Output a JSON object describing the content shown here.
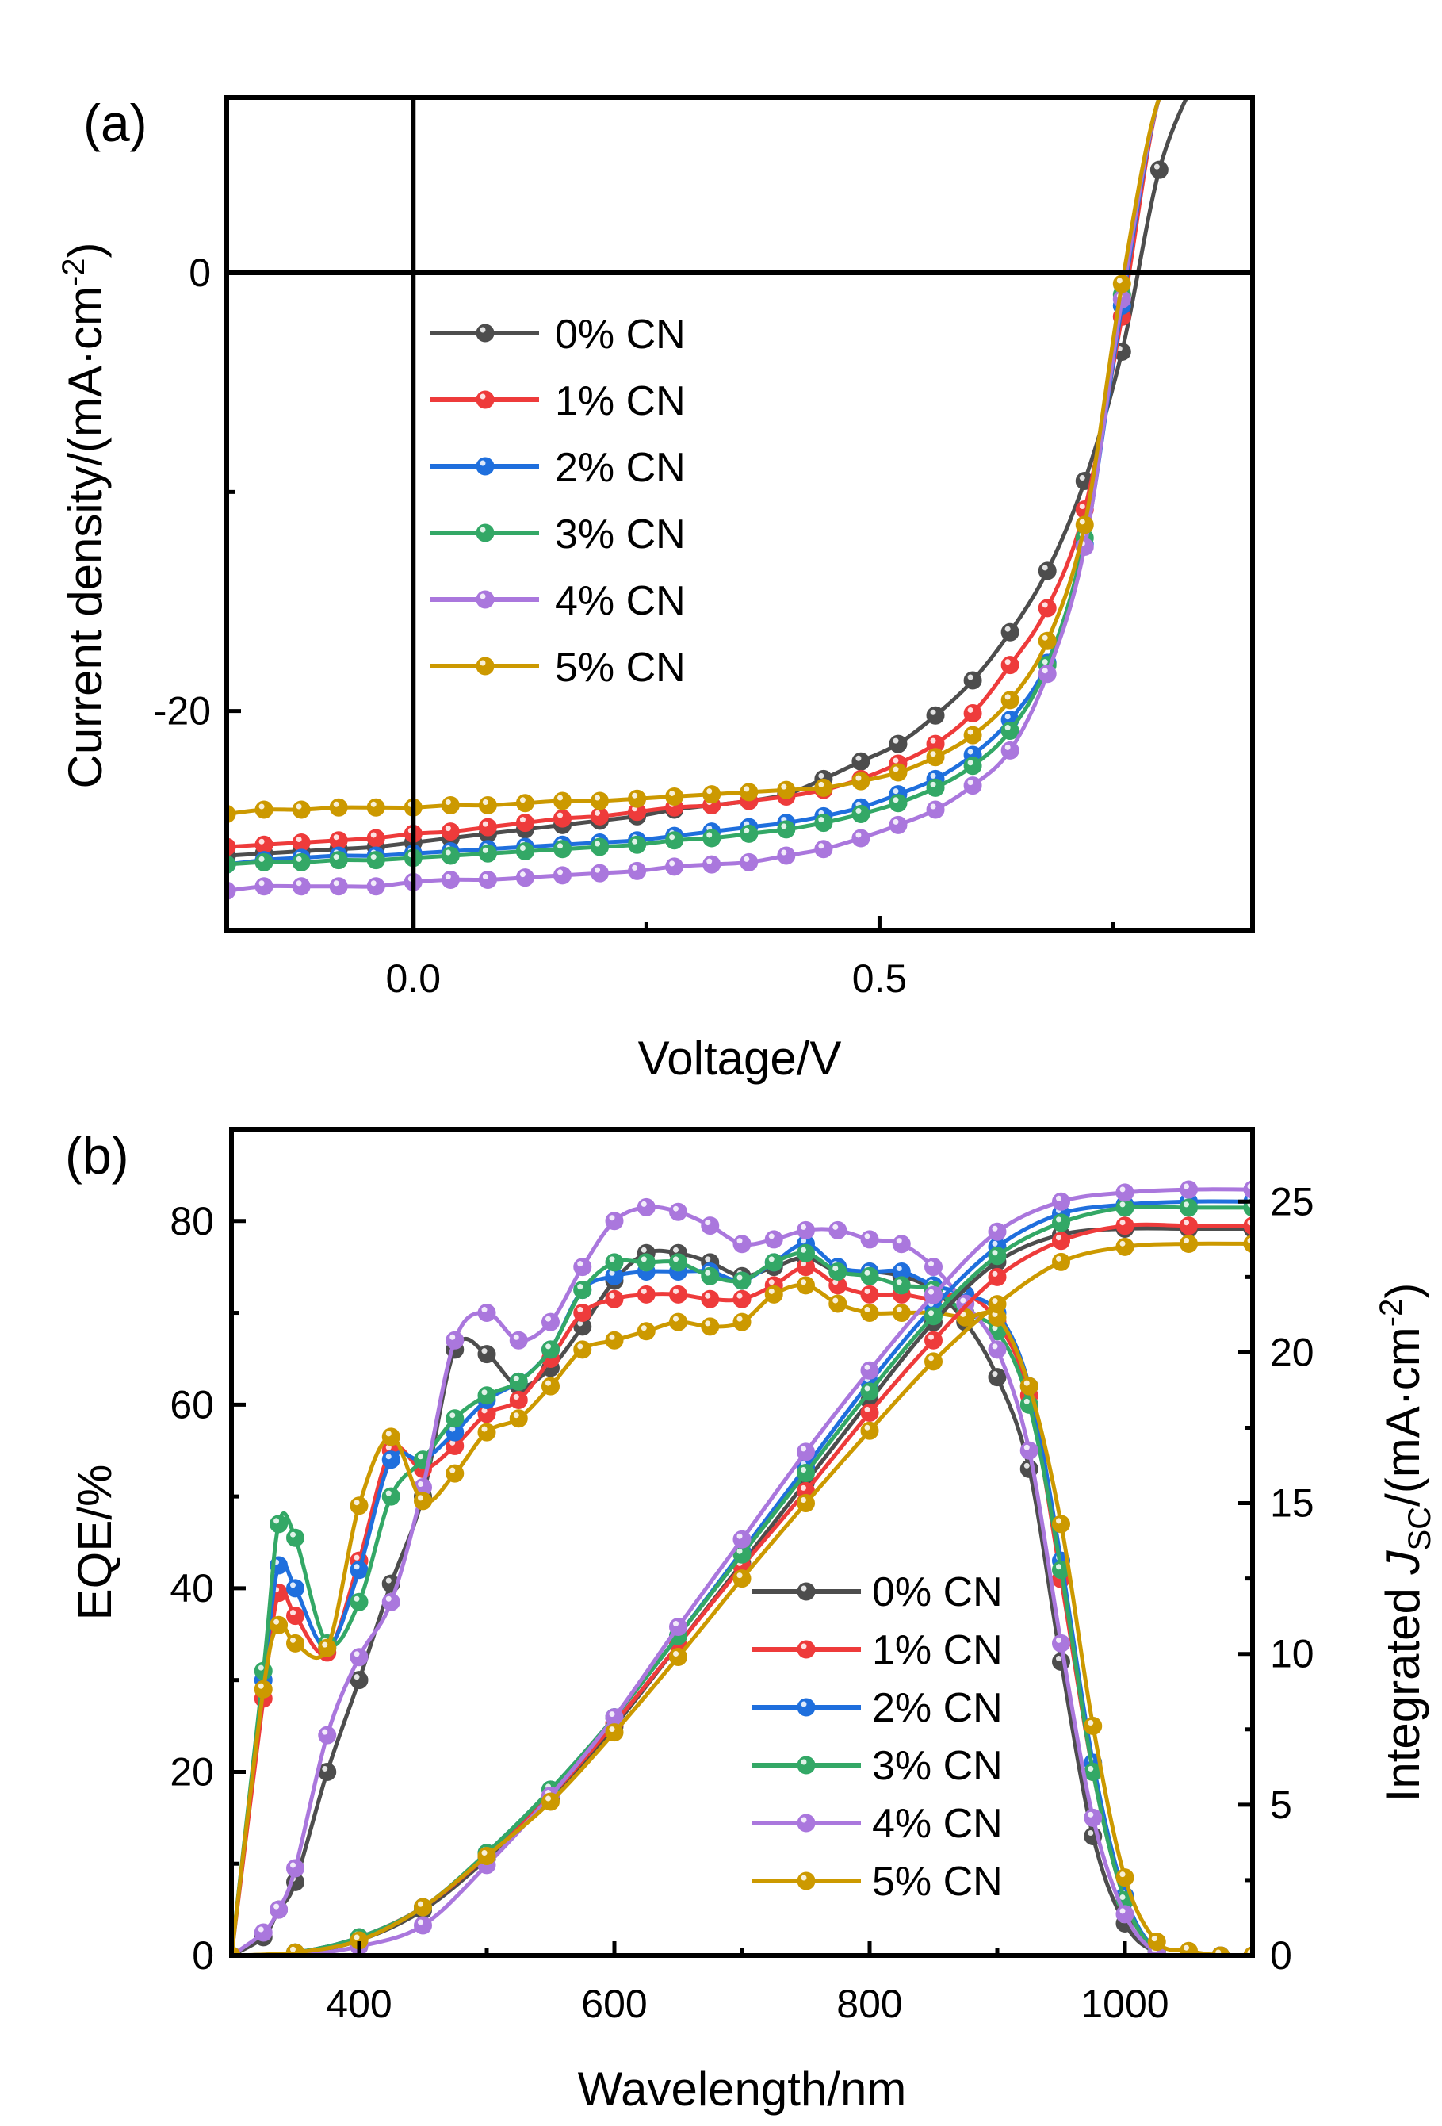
{
  "series_colors": {
    "0% CN": "#4d4d4d",
    "1% CN": "#ee3b3b",
    "2% CN": "#1f6fdd",
    "3% CN": "#33a866",
    "4% CN": "#aa77dd",
    "5% CN": "#cc9900"
  },
  "chart_data": [
    {
      "id": "a",
      "type": "line",
      "panel_label": "(a)",
      "xlabel": "Voltage/V",
      "ylabel": "Current density/(mA·cm⁻²)",
      "ylabel_parts": {
        "main": "Current density/(mA·cm",
        "sup": "-2",
        "end": ")"
      },
      "xlim": [
        -0.2,
        0.9
      ],
      "ylim": [
        -30,
        8
      ],
      "x_ticks": [
        0.0,
        0.5
      ],
      "x_tick_labels": [
        "0.0",
        "0.5"
      ],
      "x_minor_ticks": [
        0.25,
        0.75
      ],
      "y_ticks": [
        0,
        -20
      ],
      "y_tick_labels": [
        "0",
        "-20"
      ],
      "y_minor_ticks": [
        -10
      ],
      "reference_lines": {
        "x": 0,
        "y": 0
      },
      "grid": false,
      "legend_position": "upper-left",
      "legend": [
        "0% CN",
        "1% CN",
        "2% CN",
        "3% CN",
        "4% CN",
        "5% CN"
      ],
      "x": [
        -0.2,
        -0.16,
        -0.12,
        -0.08,
        -0.04,
        0.0,
        0.04,
        0.08,
        0.12,
        0.16,
        0.2,
        0.24,
        0.28,
        0.32,
        0.36,
        0.4,
        0.44,
        0.48,
        0.52,
        0.56,
        0.6,
        0.64,
        0.68,
        0.72,
        0.76,
        0.8,
        0.84
      ],
      "series": [
        {
          "name": "0% CN",
          "values": [
            -26.6,
            -26.5,
            -26.4,
            -26.3,
            -26.2,
            -26.0,
            -25.8,
            -25.6,
            -25.4,
            -25.2,
            -25.0,
            -24.8,
            -24.5,
            -24.3,
            -24.1,
            -23.8,
            -23.1,
            -22.3,
            -21.5,
            -20.2,
            -18.6,
            -16.4,
            -13.6,
            -9.5,
            -3.6,
            4.7,
            9.0
          ]
        },
        {
          "name": "1% CN",
          "values": [
            -26.2,
            -26.1,
            -26.0,
            -25.9,
            -25.8,
            -25.6,
            -25.5,
            -25.3,
            -25.1,
            -24.9,
            -24.8,
            -24.6,
            -24.4,
            -24.3,
            -24.1,
            -23.9,
            -23.6,
            -23.1,
            -22.4,
            -21.5,
            -20.1,
            -17.9,
            -15.3,
            -10.8,
            -2.0,
            8.0,
            9.0
          ]
        },
        {
          "name": "2% CN",
          "values": [
            -27.0,
            -26.8,
            -26.7,
            -26.6,
            -26.6,
            -26.5,
            -26.4,
            -26.3,
            -26.2,
            -26.1,
            -26.0,
            -25.9,
            -25.7,
            -25.5,
            -25.3,
            -25.1,
            -24.8,
            -24.4,
            -23.8,
            -23.1,
            -22.0,
            -20.4,
            -17.8,
            -12.4,
            -1.5,
            8.0,
            9.0
          ]
        },
        {
          "name": "3% CN",
          "values": [
            -27.0,
            -26.9,
            -26.9,
            -26.8,
            -26.8,
            -26.7,
            -26.6,
            -26.5,
            -26.4,
            -26.3,
            -26.2,
            -26.1,
            -25.9,
            -25.8,
            -25.6,
            -25.4,
            -25.1,
            -24.7,
            -24.2,
            -23.5,
            -22.5,
            -20.9,
            -17.9,
            -12.1,
            -1.0,
            8.0,
            9.0
          ]
        },
        {
          "name": "4% CN",
          "values": [
            -28.2,
            -28.0,
            -28.0,
            -28.0,
            -28.0,
            -27.8,
            -27.7,
            -27.7,
            -27.6,
            -27.5,
            -27.4,
            -27.3,
            -27.1,
            -27.0,
            -26.9,
            -26.6,
            -26.3,
            -25.8,
            -25.2,
            -24.5,
            -23.4,
            -21.8,
            -18.3,
            -12.5,
            -1.2,
            8.0,
            9.0
          ]
        },
        {
          "name": "5% CN",
          "values": [
            -24.7,
            -24.5,
            -24.5,
            -24.4,
            -24.4,
            -24.4,
            -24.3,
            -24.3,
            -24.2,
            -24.1,
            -24.1,
            -24.0,
            -23.9,
            -23.8,
            -23.7,
            -23.6,
            -23.5,
            -23.2,
            -22.8,
            -22.1,
            -21.1,
            -19.5,
            -16.8,
            -11.5,
            -0.5,
            8.0,
            9.0
          ]
        }
      ]
    },
    {
      "id": "b",
      "type": "line",
      "panel_label": "(b)",
      "xlabel": "Wavelength/nm",
      "ylabel": "EQE/%",
      "y2label": "Integrated J_SC/(mA·cm⁻²)",
      "y2label_parts": {
        "main": "Integrated ",
        "italic": "J",
        "sub": "SC",
        "mid": "/(mA·cm",
        "sup": "-2",
        "end": ")"
      },
      "xlim": [
        300,
        1100
      ],
      "ylim": [
        0,
        90
      ],
      "y2lim": [
        0,
        27.4
      ],
      "x_ticks": [
        400,
        600,
        800,
        1000
      ],
      "x_tick_labels": [
        "400",
        "600",
        "800",
        "1000"
      ],
      "x_minor_ticks": [
        500,
        700,
        900
      ],
      "y_ticks": [
        0,
        20,
        40,
        60,
        80
      ],
      "y_tick_labels": [
        "0",
        "20",
        "40",
        "60",
        "80"
      ],
      "y_minor_ticks": [
        10,
        30,
        50,
        70
      ],
      "y2_ticks": [
        0,
        5,
        10,
        15,
        20,
        25
      ],
      "y2_tick_labels": [
        "0",
        "5",
        "10",
        "15",
        "20",
        "25"
      ],
      "y2_minor_ticks": [
        2.5,
        7.5,
        12.5,
        17.5,
        22.5
      ],
      "grid": false,
      "legend_position": "lower-center",
      "legend": [
        "0% CN",
        "1% CN",
        "2% CN",
        "3% CN",
        "4% CN",
        "5% CN"
      ],
      "eqe_x": [
        300,
        325,
        337,
        350,
        375,
        400,
        425,
        450,
        475,
        500,
        525,
        550,
        575,
        600,
        625,
        650,
        675,
        700,
        725,
        750,
        775,
        800,
        825,
        850,
        875,
        900,
        925,
        950,
        975,
        1000,
        1025,
        1050,
        1075,
        1100
      ],
      "eqe_series": [
        {
          "name": "0% CN",
          "values": [
            0,
            2,
            5,
            8,
            20,
            30,
            40.5,
            50,
            66,
            65.5,
            62,
            64,
            68.5,
            73.5,
            76.5,
            76.5,
            75.5,
            74,
            75,
            76,
            74.5,
            74.5,
            74,
            72.5,
            69,
            63,
            53,
            32,
            13,
            3.5,
            0.3,
            0,
            0,
            0
          ]
        },
        {
          "name": "1% CN",
          "values": [
            0,
            28,
            39.5,
            37,
            33,
            43,
            55,
            53,
            55.5,
            59,
            60.5,
            65,
            70,
            71.5,
            72,
            72,
            71.5,
            71.5,
            73,
            75,
            73,
            72,
            72,
            71.5,
            72,
            69,
            61,
            41,
            20,
            6,
            0.5,
            0,
            0,
            0
          ]
        },
        {
          "name": "2% CN",
          "values": [
            0,
            30,
            42.5,
            40,
            33.5,
            42,
            54,
            54,
            57,
            60.5,
            62.5,
            66,
            72.5,
            74,
            74.5,
            74.5,
            74.5,
            73.5,
            75.5,
            77.5,
            75,
            74.5,
            74.5,
            73,
            72,
            70,
            62,
            43,
            21,
            6.5,
            0.5,
            0,
            0,
            0
          ]
        },
        {
          "name": "3% CN",
          "values": [
            0,
            31,
            47,
            45.5,
            34,
            38.5,
            50,
            54,
            58.5,
            61,
            62.5,
            66,
            72.5,
            75.5,
            75.5,
            75.5,
            74,
            73.5,
            75.5,
            76.5,
            74.5,
            74,
            73,
            72.5,
            70,
            68,
            60,
            42,
            20,
            6,
            0.5,
            0,
            0,
            0
          ]
        },
        {
          "name": "4% CN",
          "values": [
            0,
            2.5,
            5,
            9.5,
            24,
            32.5,
            38.5,
            51,
            67,
            70,
            67,
            69,
            75,
            80,
            81.5,
            81,
            79.5,
            77.5,
            78,
            79,
            79,
            78,
            77.5,
            75,
            71,
            66,
            55,
            34,
            15,
            4.5,
            0.3,
            0,
            0,
            0
          ]
        },
        {
          "name": "5% CN",
          "values": [
            0,
            29,
            36,
            34,
            33.5,
            49,
            56.5,
            49.5,
            52.5,
            57,
            58.5,
            62,
            66,
            67,
            68,
            69,
            68.5,
            69,
            72,
            73,
            71,
            70,
            70,
            70,
            69.5,
            69.5,
            62,
            47,
            25,
            8.5,
            1.5,
            0.5,
            0,
            0
          ]
        }
      ],
      "jsc_x": [
        300,
        350,
        400,
        450,
        500,
        550,
        600,
        650,
        700,
        750,
        800,
        850,
        900,
        950,
        1000,
        1050,
        1100
      ],
      "jsc_series": [
        {
          "name": "0% CN",
          "values": [
            0,
            0.05,
            0.5,
            1.5,
            3.2,
            5.2,
            7.6,
            10.3,
            13.0,
            15.7,
            18.4,
            21.0,
            23.0,
            23.9,
            24.1,
            24.1,
            24.1
          ]
        },
        {
          "name": "1% CN",
          "values": [
            0,
            0.1,
            0.6,
            1.6,
            3.3,
            5.3,
            7.7,
            10.3,
            12.9,
            15.4,
            18.0,
            20.4,
            22.5,
            23.7,
            24.2,
            24.2,
            24.2
          ]
        },
        {
          "name": "2% CN",
          "values": [
            0,
            0.1,
            0.6,
            1.6,
            3.4,
            5.5,
            7.9,
            10.6,
            13.4,
            16.2,
            19.0,
            21.5,
            23.5,
            24.6,
            24.9,
            25.0,
            25.0
          ]
        },
        {
          "name": "3% CN",
          "values": [
            0,
            0.1,
            0.6,
            1.6,
            3.4,
            5.5,
            7.9,
            10.6,
            13.3,
            16.0,
            18.7,
            21.2,
            23.2,
            24.3,
            24.8,
            24.8,
            24.8
          ]
        },
        {
          "name": "4% CN",
          "values": [
            0,
            0.0,
            0.3,
            1.0,
            3.0,
            5.3,
            7.9,
            10.9,
            13.8,
            16.7,
            19.4,
            21.9,
            24.0,
            25.0,
            25.3,
            25.4,
            25.4
          ]
        },
        {
          "name": "5% CN",
          "values": [
            0,
            0.1,
            0.5,
            1.6,
            3.3,
            5.1,
            7.4,
            9.9,
            12.5,
            15.0,
            17.4,
            19.7,
            21.6,
            23.0,
            23.5,
            23.6,
            23.6
          ]
        }
      ]
    }
  ]
}
